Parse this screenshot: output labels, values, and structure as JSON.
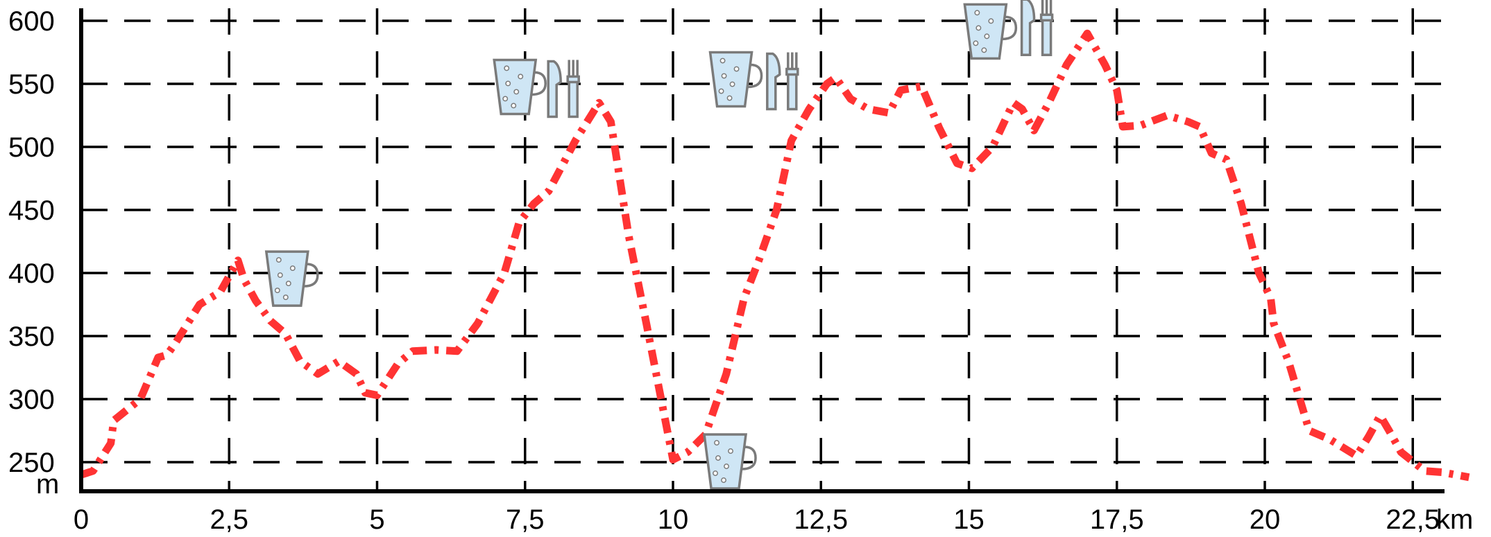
{
  "chart_data": {
    "type": "line",
    "title": "",
    "xlabel": "km",
    "ylabel": "m",
    "xlim": [
      0,
      23.5
    ],
    "ylim": [
      230,
      600
    ],
    "x_ticks": [
      0,
      2.5,
      5,
      7.5,
      10,
      12.5,
      15,
      17.5,
      20,
      22.5
    ],
    "x_tick_labels": [
      "0",
      "2,5",
      "5",
      "7,5",
      "10",
      "12,5",
      "15",
      "17,5",
      "20",
      "22,5"
    ],
    "y_ticks": [
      250,
      300,
      350,
      400,
      450,
      500,
      550,
      600
    ],
    "y_tick_labels": [
      "250",
      "300",
      "350",
      "400",
      "450",
      "500",
      "550",
      "600"
    ],
    "grid": true,
    "colors": {
      "line": "#ff3333",
      "icon_fill": "#cfe6f5",
      "icon_stroke": "#7a7a7a"
    },
    "series": [
      {
        "x": [
          0,
          0.2,
          0.5,
          0.55,
          1.0,
          1.3,
          1.45,
          1.6,
          2.0,
          2.35,
          2.65,
          2.75,
          2.95,
          3.2,
          3.45,
          3.7,
          4.0,
          4.35,
          4.65,
          4.8,
          5.0,
          5.35,
          5.6,
          6.0,
          6.35,
          6.7,
          7.15,
          7.4,
          7.65,
          7.9,
          8.35,
          8.75,
          8.95,
          9.25,
          9.55,
          9.8,
          10.0,
          10.25,
          10.55,
          10.9,
          11.2,
          11.45,
          11.75,
          12.0,
          12.3,
          12.6,
          12.75,
          13.0,
          13.3,
          13.65,
          13.85,
          14.2,
          14.5,
          14.8,
          15.05,
          15.4,
          15.75,
          15.9,
          16.1,
          16.35,
          16.65,
          17.0,
          17.3,
          17.5,
          17.6,
          17.9,
          18.35,
          18.7,
          18.9,
          19.1,
          19.35,
          19.6,
          19.9,
          20.1,
          20.15,
          20.4,
          20.75,
          21.1,
          21.55,
          21.75,
          21.95,
          22.1,
          22.3,
          22.7,
          23.0,
          23.45
        ],
        "values": [
          240,
          243,
          265,
          283,
          300,
          333,
          335,
          345,
          375,
          385,
          410,
          395,
          378,
          362,
          352,
          330,
          320,
          330,
          320,
          305,
          303,
          328,
          338,
          339,
          338,
          360,
          400,
          440,
          455,
          465,
          505,
          535,
          520,
          430,
          360,
          300,
          252,
          258,
          272,
          320,
          380,
          410,
          450,
          505,
          530,
          550,
          555,
          538,
          530,
          527,
          545,
          548,
          515,
          487,
          483,
          500,
          535,
          530,
          513,
          535,
          565,
          590,
          565,
          545,
          516,
          517,
          525,
          520,
          516,
          495,
          490,
          455,
          400,
          380,
          360,
          330,
          275,
          268,
          255,
          270,
          287,
          275,
          258,
          243,
          242,
          238
        ]
      }
    ],
    "icons": [
      {
        "name": "drink-icon",
        "km": 3.55,
        "m": 395
      },
      {
        "name": "drink-icon",
        "km": 7.4,
        "m": 547
      },
      {
        "name": "food-icon",
        "km": 8.15,
        "m": 547
      },
      {
        "name": "drink-icon",
        "km": 10.95,
        "m": 250
      },
      {
        "name": "drink-icon",
        "km": 11.05,
        "m": 553
      },
      {
        "name": "food-icon",
        "km": 11.85,
        "m": 553
      },
      {
        "name": "drink-icon",
        "km": 15.35,
        "m": 591
      },
      {
        "name": "food-icon",
        "km": 16.15,
        "m": 596
      }
    ]
  }
}
